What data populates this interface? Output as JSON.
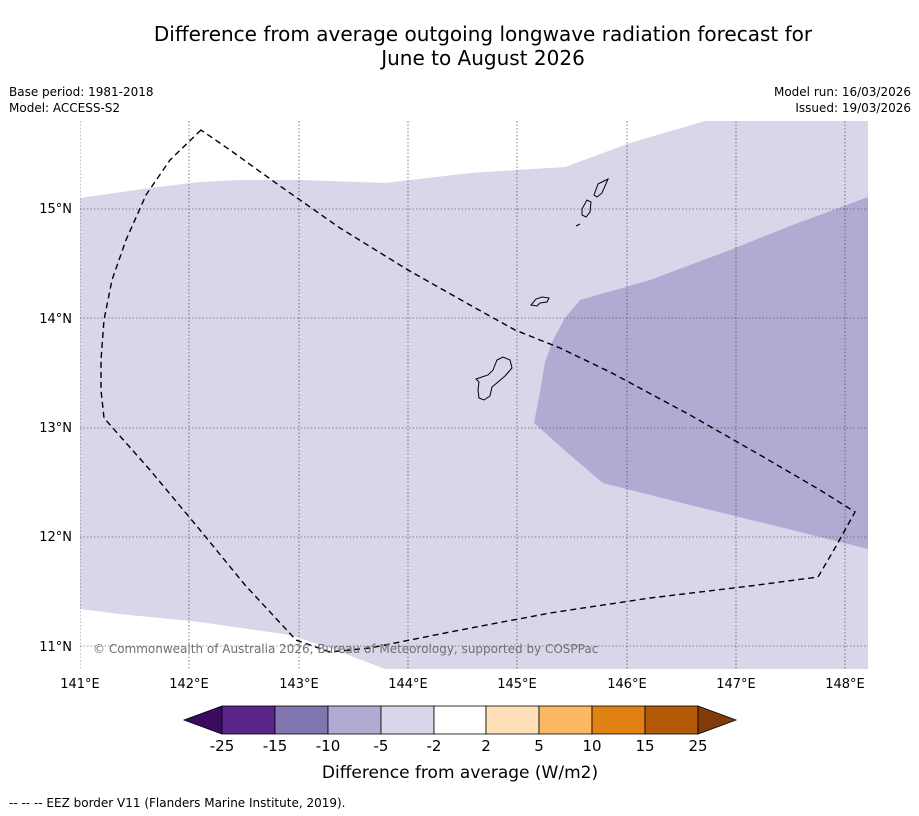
{
  "title_line1": "Difference from average outgoing longwave radiation forecast for",
  "title_line2": "June to August 2026",
  "meta": {
    "base_period": "Base period: 1981-2018",
    "model": "Model: ACCESS-S2",
    "model_run": "Model run: 16/03/2026",
    "issued": "Issued: 19/03/2026"
  },
  "map": {
    "lon_labels": [
      "141°E",
      "142°E",
      "143°E",
      "144°E",
      "145°E",
      "146°E",
      "147°E",
      "148°E"
    ],
    "lat_labels": [
      "15°N",
      "14°N",
      "13°N",
      "12°N",
      "11°N"
    ],
    "copyright": "© Commonwealth of Australia 2026, Bureau of Meteorology, supported by COSPPac",
    "fill_colors": {
      "band_-5_-2": "#d7d7e9",
      "band_-10_-5": "#b1aad2"
    }
  },
  "colorbar": {
    "ticks": [
      "-25",
      "-15",
      "-10",
      "-5",
      "-2",
      "2",
      "5",
      "10",
      "15",
      "25"
    ],
    "colors": [
      "#3a0b5e",
      "#5a2589",
      "#8276b1",
      "#b1aad2",
      "#d7d7e9",
      "#ffffff",
      "#fde0b7",
      "#fbb862",
      "#e08114",
      "#b35806",
      "#7f3b08"
    ],
    "label": "Difference from average (W/m2)"
  },
  "footnote": "--  --  -- EEZ border V11 (Flanders Marine Institute, 2019)."
}
